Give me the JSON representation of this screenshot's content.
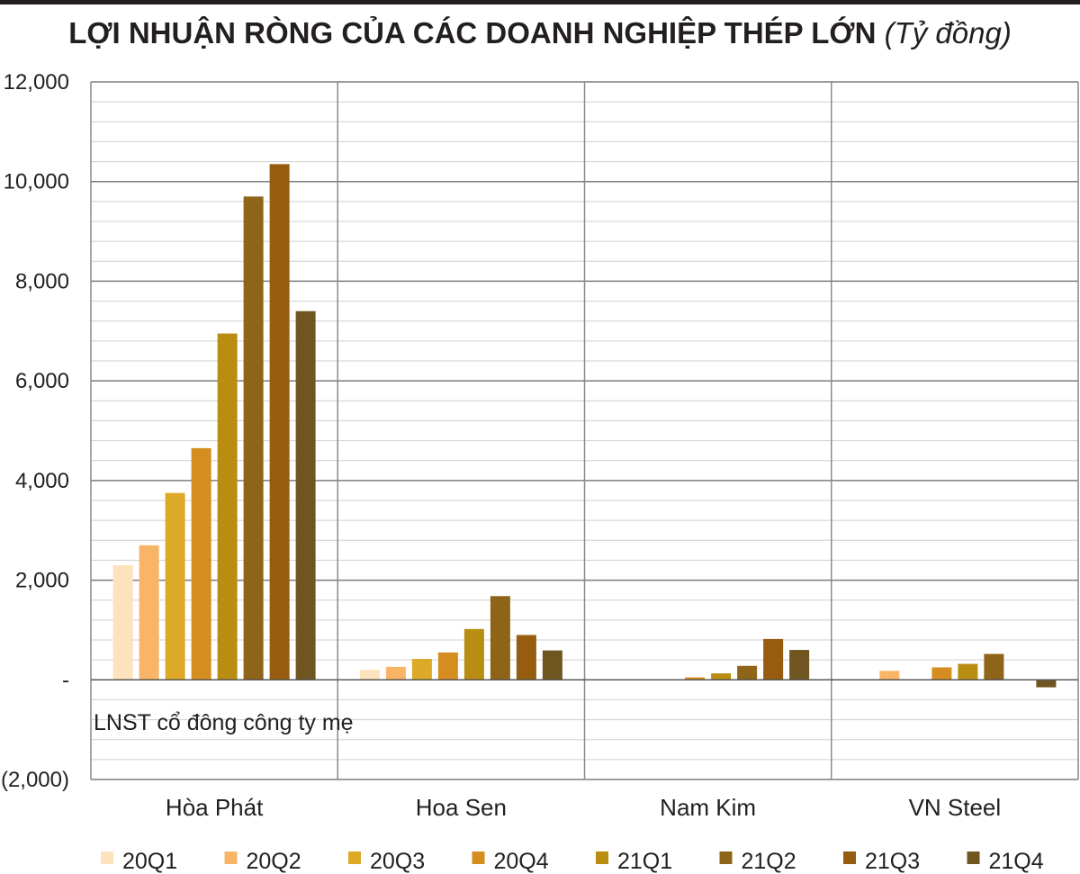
{
  "title": {
    "main": "LỢI NHUẬN RÒNG CỦA CÁC DOANH NGHIỆP THÉP LỚN",
    "unit": "(Tỷ đồng)"
  },
  "chart_data": {
    "type": "bar",
    "title": "LỢI NHUẬN RÒNG CỦA CÁC DOANH NGHIỆP THÉP LỚN (Tỷ đồng)",
    "categories": [
      "Hòa Phát",
      "Hoa Sen",
      "Nam Kim",
      "VN Steel"
    ],
    "ylim": [
      -2000,
      12000
    ],
    "yticks": [
      {
        "value": 12000,
        "label": "12,000"
      },
      {
        "value": 10000,
        "label": "10,000"
      },
      {
        "value": 8000,
        "label": "8,000"
      },
      {
        "value": 6000,
        "label": "6,000"
      },
      {
        "value": 4000,
        "label": "4,000"
      },
      {
        "value": 2000,
        "label": "2,000"
      },
      {
        "value": 0,
        "label": "-"
      },
      {
        "value": -2000,
        "label": "(2,000)"
      }
    ],
    "minor_grid_step": 400,
    "major_grid_step": 2000,
    "grid": true,
    "legend_position": "bottom",
    "annotation": "LNST cổ đông công ty mẹ",
    "series": [
      {
        "name": "20Q1",
        "color": "#fde3bd",
        "values": [
          2300,
          200,
          0,
          0
        ]
      },
      {
        "name": "20Q2",
        "color": "#f8b567",
        "values": [
          2700,
          260,
          0,
          180
        ]
      },
      {
        "name": "20Q3",
        "color": "#ddaa27",
        "values": [
          3750,
          420,
          0,
          0
        ]
      },
      {
        "name": "20Q4",
        "color": "#d48d1e",
        "values": [
          4650,
          550,
          50,
          250
        ]
      },
      {
        "name": "21Q1",
        "color": "#b98c12",
        "values": [
          6950,
          1020,
          130,
          320
        ]
      },
      {
        "name": "21Q2",
        "color": "#8d6418",
        "values": [
          9700,
          1680,
          280,
          520
        ]
      },
      {
        "name": "21Q3",
        "color": "#965c10",
        "values": [
          10350,
          900,
          820,
          0
        ]
      },
      {
        "name": "21Q4",
        "color": "#6f5620",
        "values": [
          7400,
          590,
          600,
          -150
        ]
      }
    ],
    "extra_values_note": ""
  }
}
